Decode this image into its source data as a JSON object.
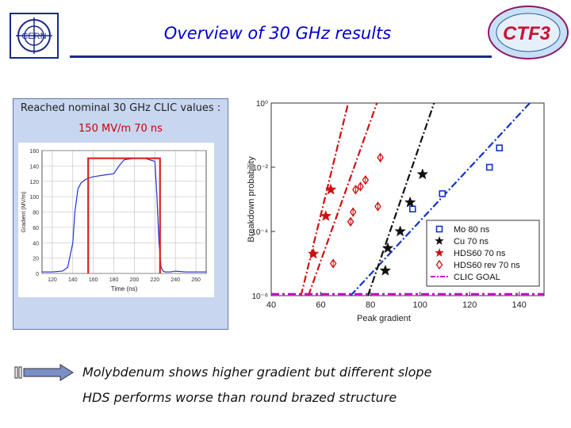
{
  "slide": {
    "title": "Overview of 30 GHz results",
    "panel_title": "Reached nominal 30 GHz CLIC values :",
    "panel_sub": "150 MV/m 70 ns",
    "cern_logo_text": "CERN",
    "ctf_logo_text": "CTF3",
    "bullets": [
      "Molybdenum shows higher gradient but different slope",
      "HDS performs worse than round brazed structure"
    ]
  },
  "chart_data": [
    {
      "type": "line",
      "title": "",
      "xlabel": "Time (ns)",
      "ylabel": "Gradient (MV/m)",
      "xlim": [
        110,
        270
      ],
      "ylim": [
        0,
        160
      ],
      "xticks": [
        "120",
        "140",
        "160",
        "180",
        "200",
        "220",
        "240",
        "260"
      ],
      "yticks": [
        "0",
        "20",
        "40",
        "60",
        "80",
        "100",
        "120",
        "140",
        "160"
      ],
      "series": [
        {
          "name": "",
          "color": "#2233dd",
          "x": [
            110,
            120,
            130,
            135,
            140,
            142,
            145,
            148,
            150,
            152,
            155,
            160,
            170,
            180,
            185,
            190,
            200,
            210,
            215,
            220,
            222,
            224,
            226,
            228,
            230,
            235,
            240,
            250,
            260,
            270
          ],
          "y": [
            2,
            2,
            3,
            8,
            40,
            80,
            110,
            118,
            120,
            122,
            124,
            126,
            128,
            130,
            140,
            148,
            150,
            150,
            148,
            146,
            100,
            40,
            8,
            3,
            2,
            2,
            3,
            2,
            2,
            2
          ]
        },
        {
          "name": "",
          "color": "#dd2222",
          "x": [
            155,
            155,
            225,
            225
          ],
          "y": [
            0,
            150,
            150,
            0
          ]
        }
      ]
    },
    {
      "type": "scatter",
      "title": "",
      "xlabel": "Peak gradient",
      "ylabel": "Breakdown probability",
      "log_y": true,
      "xlim": [
        40,
        150
      ],
      "ylim": [
        1e-06,
        1
      ],
      "xticks": [
        "40",
        "60",
        "80",
        "100",
        "120",
        "140"
      ],
      "yticks": [
        "10⁰",
        "10⁻²",
        "10⁻⁴",
        "10⁻⁶"
      ],
      "legend_position": "bottom-right",
      "series": [
        {
          "name": "Mo 80 ns",
          "color": "#1133cc",
          "marker": "square",
          "x": [
            97,
            109,
            128,
            132
          ],
          "y": [
            0.0005,
            0.0015,
            0.01,
            0.04
          ],
          "fit": {
            "color": "#1133cc",
            "x": [
              72,
              150
            ],
            "y": [
              1e-06,
              3
            ]
          }
        },
        {
          "name": "Cu 70 ns",
          "color": "#111111",
          "marker": "star",
          "x": [
            86,
            87,
            92,
            96,
            101
          ],
          "y": [
            6e-06,
            3e-05,
            0.0001,
            0.0008,
            0.006
          ],
          "fit": {
            "color": "#111111",
            "x": [
              79,
              107
            ],
            "y": [
              1e-06,
              2
            ]
          }
        },
        {
          "name": "HDS60 70 ns",
          "color": "#cc1111",
          "marker": "star",
          "x": [
            57,
            62,
            64
          ],
          "y": [
            2e-05,
            0.0003,
            0.002
          ],
          "fit": {
            "color": "#cc1111",
            "x": [
              52,
              72
            ],
            "y": [
              1e-06,
              2
            ]
          }
        },
        {
          "name": "HDS60 rev 70 ns",
          "color": "#cc1111",
          "marker": "diamond",
          "x": [
            65,
            72,
            73,
            74,
            76,
            78,
            83,
            84
          ],
          "y": [
            1e-05,
            0.0002,
            0.0004,
            0.002,
            0.0025,
            0.004,
            0.0006,
            0.02
          ],
          "fit": {
            "color": "#cc1111",
            "x": [
              55,
              84
            ],
            "y": [
              1e-06,
              2
            ]
          }
        },
        {
          "name": "CLIC GOAL",
          "color": "#cc00cc",
          "marker": "dashdot",
          "x": [
            40,
            150
          ],
          "y": [
            1e-06,
            1e-06
          ]
        }
      ]
    }
  ]
}
